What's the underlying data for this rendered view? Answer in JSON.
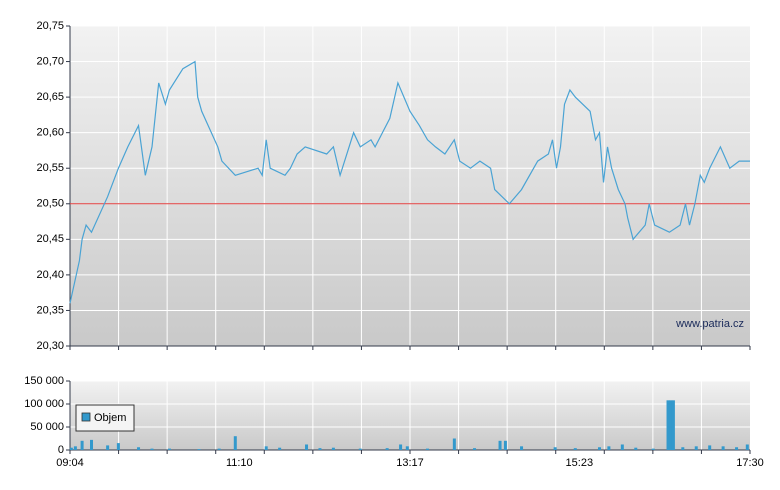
{
  "chart_data": [
    {
      "type": "line",
      "x": [
        "09:04",
        "09:11",
        "09:13",
        "09:16",
        "09:20",
        "09:32",
        "09:40",
        "09:47",
        "09:55",
        "10:00",
        "10:05",
        "10:10",
        "10:15",
        "10:18",
        "10:28",
        "10:37",
        "10:39",
        "10:42",
        "10:54",
        "10:57",
        "11:07",
        "11:24",
        "11:27",
        "11:30",
        "11:33",
        "11:44",
        "11:48",
        "11:53",
        "11:59",
        "12:15",
        "12:20",
        "12:25",
        "12:35",
        "12:40",
        "12:48",
        "12:51",
        "13:02",
        "13:08",
        "13:17",
        "13:24",
        "13:30",
        "13:36",
        "13:43",
        "13:50",
        "13:54",
        "14:02",
        "14:09",
        "14:17",
        "14:20",
        "14:31",
        "14:40",
        "14:52",
        "15:00",
        "15:03",
        "15:06",
        "15:09",
        "15:12",
        "15:16",
        "15:20",
        "15:31",
        "15:35",
        "15:38",
        "15:41",
        "15:44",
        "15:47",
        "15:52",
        "15:57",
        "15:59",
        "16:03",
        "16:12",
        "16:15",
        "16:19",
        "16:30",
        "16:38",
        "16:42",
        "16:45",
        "16:49",
        "16:53",
        "16:56",
        "17:00",
        "17:08",
        "17:15",
        "17:22",
        "17:30"
      ],
      "values": [
        20.36,
        20.42,
        20.45,
        20.47,
        20.46,
        20.51,
        20.55,
        20.58,
        20.61,
        20.54,
        20.58,
        20.67,
        20.64,
        20.66,
        20.69,
        20.7,
        20.65,
        20.63,
        20.58,
        20.56,
        20.54,
        20.55,
        20.54,
        20.59,
        20.55,
        20.54,
        20.55,
        20.57,
        20.58,
        20.57,
        20.58,
        20.54,
        20.6,
        20.58,
        20.59,
        20.58,
        20.62,
        20.67,
        20.63,
        20.61,
        20.59,
        20.58,
        20.57,
        20.59,
        20.56,
        20.55,
        20.56,
        20.55,
        20.52,
        20.5,
        20.52,
        20.56,
        20.57,
        20.59,
        20.55,
        20.58,
        20.64,
        20.66,
        20.65,
        20.63,
        20.59,
        20.6,
        20.53,
        20.58,
        20.55,
        20.52,
        20.5,
        20.48,
        20.45,
        20.47,
        20.5,
        20.47,
        20.46,
        20.47,
        20.5,
        20.47,
        20.5,
        20.54,
        20.53,
        20.55,
        20.58,
        20.55,
        20.56,
        20.56
      ],
      "color": "#4aa3d4",
      "xlim": [
        "09:04",
        "17:30"
      ],
      "ylim": [
        20.3,
        20.75
      ],
      "yticks": [
        {
          "value": 20.3,
          "label": "20,30"
        },
        {
          "value": 20.35,
          "label": "20,35"
        },
        {
          "value": 20.4,
          "label": "20,40"
        },
        {
          "value": 20.45,
          "label": "20,45"
        },
        {
          "value": 20.5,
          "label": "20,50"
        },
        {
          "value": 20.55,
          "label": "20,55"
        },
        {
          "value": 20.6,
          "label": "20,60"
        },
        {
          "value": 20.65,
          "label": "20,65"
        },
        {
          "value": 20.7,
          "label": "20,70"
        },
        {
          "value": 20.75,
          "label": "20,75"
        }
      ],
      "reference_line": 20.5,
      "reference_color": "#e03c3c",
      "annotation": "www.patria.cz",
      "grid": true
    },
    {
      "type": "bar",
      "x": [
        "09:05",
        "09:08",
        "09:13",
        "09:20",
        "09:32",
        "09:40",
        "09:55",
        "10:05",
        "10:18",
        "10:40",
        "10:55",
        "11:07",
        "11:30",
        "11:40",
        "12:00",
        "12:10",
        "12:20",
        "12:40",
        "13:00",
        "13:10",
        "13:15",
        "13:30",
        "13:50",
        "14:05",
        "14:24",
        "14:28",
        "14:40",
        "15:05",
        "15:20",
        "15:38",
        "15:45",
        "15:55",
        "16:05",
        "16:18",
        "16:29",
        "16:31",
        "16:33",
        "16:40",
        "16:50",
        "17:00",
        "17:10",
        "17:20",
        "17:28"
      ],
      "series": [
        {
          "name": "Objem",
          "color": "#3399cc",
          "values": [
            5000,
            8000,
            20000,
            22000,
            10000,
            15000,
            6000,
            3000,
            3000,
            2000,
            3000,
            30000,
            8000,
            5000,
            12000,
            4000,
            5000,
            3000,
            4000,
            12000,
            8000,
            3000,
            25000,
            4000,
            20000,
            20000,
            8000,
            6000,
            4000,
            6000,
            8000,
            12000,
            5000,
            3000,
            108000,
            108000,
            108000,
            6000,
            8000,
            10000,
            8000,
            6000,
            12000
          ]
        }
      ],
      "xlim": [
        "09:04",
        "17:30"
      ],
      "xticks": [
        "09:04",
        "11:10",
        "13:17",
        "15:23",
        "17:30"
      ],
      "ylim": [
        0,
        150000
      ],
      "yticks": [
        0,
        {
          "value": 50000,
          "label": "50 000"
        },
        {
          "value": 100000,
          "label": "100 000"
        },
        {
          "value": 150000,
          "label": "150 000"
        }
      ],
      "legend": "upper left",
      "grid": true
    }
  ]
}
